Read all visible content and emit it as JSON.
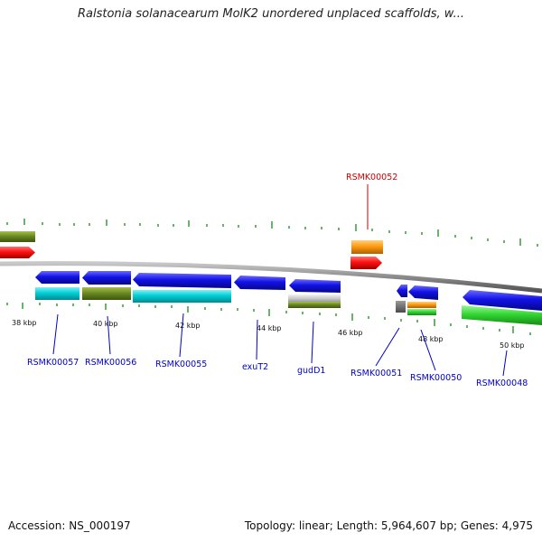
{
  "header": {
    "title": "Ralstonia solanacearum MolK2 unordered unplaced scaffolds, w..."
  },
  "scale_labels": [
    "38 kbp",
    "40 kbp",
    "42 kbp",
    "44 kbp",
    "46 kbp",
    "48 kbp",
    "50 kbp"
  ],
  "gene_labels": {
    "rsmk00052": "RSMK00052",
    "rsmk00057": "RSMK00057",
    "rsmk00056": "RSMK00056",
    "rsmk00055": "RSMK00055",
    "exut2": "exuT2",
    "gudd1": "gudD1",
    "rsmk00051": "RSMK00051",
    "rsmk00050": "RSMK00050",
    "rsmk00048": "RSMK00048"
  },
  "colors": {
    "backbone": "#8a8a8a",
    "forward_gene": "#1010e0",
    "reverse_gene": "#ff2020",
    "cyan_track": "#00c8d0",
    "olive_track": "#6b8a20",
    "orange_track": "#ff9a10",
    "green_track": "#30d030",
    "tick": "#1a8a1a",
    "highlight_label": "#cc0000",
    "gene_label": "#0000cc"
  },
  "footer": {
    "accession": "Accession: NS_000197",
    "summary": "Topology: linear; Length: 5,964,607 bp; Genes: 4,975"
  }
}
